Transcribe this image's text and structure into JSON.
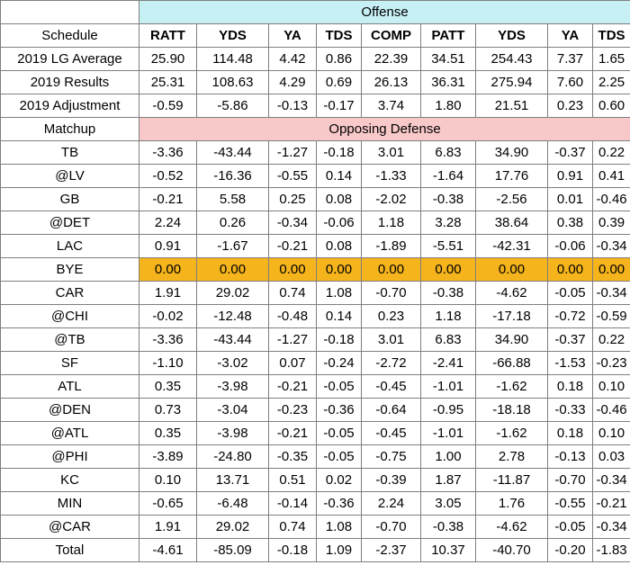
{
  "offense_label": "Offense",
  "defense_label": "Opposing Defense",
  "schedule_label": "Schedule",
  "matchup_label": "Matchup",
  "columns": [
    "RATT",
    "YDS",
    "YA",
    "TDS",
    "COMP",
    "PATT",
    "YDS",
    "YA",
    "TDS"
  ],
  "summary_rows": [
    {
      "label": "2019 LG Average",
      "values": [
        "25.90",
        "114.48",
        "4.42",
        "0.86",
        "22.39",
        "34.51",
        "254.43",
        "7.37",
        "1.65"
      ]
    },
    {
      "label": "2019 Results",
      "values": [
        "25.31",
        "108.63",
        "4.29",
        "0.69",
        "26.13",
        "36.31",
        "275.94",
        "7.60",
        "2.25"
      ]
    },
    {
      "label": "2019 Adjustment",
      "values": [
        "-0.59",
        "-5.86",
        "-0.13",
        "-0.17",
        "3.74",
        "1.80",
        "21.51",
        "0.23",
        "0.60"
      ]
    }
  ],
  "matchups": [
    {
      "label": "TB",
      "values": [
        "-3.36",
        "-43.44",
        "-1.27",
        "-0.18",
        "3.01",
        "6.83",
        "34.90",
        "-0.37",
        "0.22"
      ]
    },
    {
      "label": "@LV",
      "values": [
        "-0.52",
        "-16.36",
        "-0.55",
        "0.14",
        "-1.33",
        "-1.64",
        "17.76",
        "0.91",
        "0.41"
      ]
    },
    {
      "label": "GB",
      "values": [
        "-0.21",
        "5.58",
        "0.25",
        "0.08",
        "-2.02",
        "-0.38",
        "-2.56",
        "0.01",
        "-0.46"
      ]
    },
    {
      "label": "@DET",
      "values": [
        "2.24",
        "0.26",
        "-0.34",
        "-0.06",
        "1.18",
        "3.28",
        "38.64",
        "0.38",
        "0.39"
      ]
    },
    {
      "label": "LAC",
      "values": [
        "0.91",
        "-1.67",
        "-0.21",
        "0.08",
        "-1.89",
        "-5.51",
        "-42.31",
        "-0.06",
        "-0.34"
      ]
    },
    {
      "label": "BYE",
      "bye": true,
      "values": [
        "0.00",
        "0.00",
        "0.00",
        "0.00",
        "0.00",
        "0.00",
        "0.00",
        "0.00",
        "0.00"
      ]
    },
    {
      "label": "CAR",
      "values": [
        "1.91",
        "29.02",
        "0.74",
        "1.08",
        "-0.70",
        "-0.38",
        "-4.62",
        "-0.05",
        "-0.34"
      ]
    },
    {
      "label": "@CHI",
      "values": [
        "-0.02",
        "-12.48",
        "-0.48",
        "0.14",
        "0.23",
        "1.18",
        "-17.18",
        "-0.72",
        "-0.59"
      ]
    },
    {
      "label": "@TB",
      "values": [
        "-3.36",
        "-43.44",
        "-1.27",
        "-0.18",
        "3.01",
        "6.83",
        "34.90",
        "-0.37",
        "0.22"
      ]
    },
    {
      "label": "SF",
      "values": [
        "-1.10",
        "-3.02",
        "0.07",
        "-0.24",
        "-2.72",
        "-2.41",
        "-66.88",
        "-1.53",
        "-0.23"
      ]
    },
    {
      "label": "ATL",
      "values": [
        "0.35",
        "-3.98",
        "-0.21",
        "-0.05",
        "-0.45",
        "-1.01",
        "-1.62",
        "0.18",
        "0.10"
      ]
    },
    {
      "label": "@DEN",
      "values": [
        "0.73",
        "-3.04",
        "-0.23",
        "-0.36",
        "-0.64",
        "-0.95",
        "-18.18",
        "-0.33",
        "-0.46"
      ]
    },
    {
      "label": "@ATL",
      "values": [
        "0.35",
        "-3.98",
        "-0.21",
        "-0.05",
        "-0.45",
        "-1.01",
        "-1.62",
        "0.18",
        "0.10"
      ]
    },
    {
      "label": "@PHI",
      "values": [
        "-3.89",
        "-24.80",
        "-0.35",
        "-0.05",
        "-0.75",
        "1.00",
        "2.78",
        "-0.13",
        "0.03"
      ]
    },
    {
      "label": "KC",
      "values": [
        "0.10",
        "13.71",
        "0.51",
        "0.02",
        "-0.39",
        "1.87",
        "-11.87",
        "-0.70",
        "-0.34"
      ]
    },
    {
      "label": "MIN",
      "values": [
        "-0.65",
        "-6.48",
        "-0.14",
        "-0.36",
        "2.24",
        "3.05",
        "1.76",
        "-0.55",
        "-0.21"
      ]
    },
    {
      "label": "@CAR",
      "values": [
        "1.91",
        "29.02",
        "0.74",
        "1.08",
        "-0.70",
        "-0.38",
        "-4.62",
        "-0.05",
        "-0.34"
      ]
    }
  ],
  "total_row": {
    "label": "Total",
    "values": [
      "-4.61",
      "-85.09",
      "-0.18",
      "1.09",
      "-2.37",
      "10.37",
      "-40.70",
      "-0.20",
      "-1.83"
    ]
  },
  "colors": {
    "offense_header": "#c6f0f4",
    "defense_header": "#f9c9c9",
    "bye_highlight": "#f5b41b"
  }
}
